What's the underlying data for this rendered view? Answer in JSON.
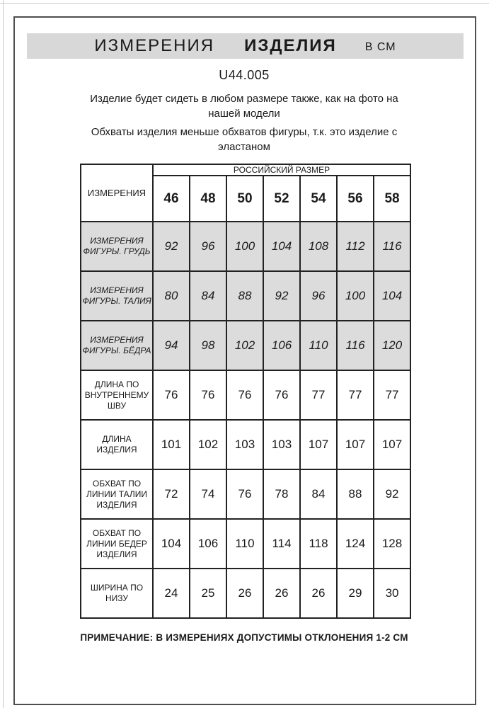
{
  "page": {
    "title": {
      "word1": "ИЗМЕРЕНИЯ",
      "word2": "ИЗДЕЛИЯ",
      "unit": "В СМ"
    },
    "model": "U44.005",
    "paragraph1": "Изделие будет сидеть в любом размере также, как на фото на нашей модели",
    "paragraph2": "Обхваты изделия меньше обхватов фигуры, т.к. это изделие с эластаном",
    "note": "ПРИМЕЧАНИЕ: В ИЗМЕРЕНИЯХ ДОПУСТИМЫ ОТКЛОНЕНИЯ 1-2 СМ"
  },
  "table": {
    "corner_label": "ИЗМЕРЕНИЯ",
    "size_group_label": "РОССИЙСКИЙ РАЗМЕР",
    "sizes": [
      "46",
      "48",
      "50",
      "52",
      "54",
      "56",
      "58"
    ],
    "rows": [
      {
        "label": "ИЗМЕРЕНИЯ ФИГУРЫ. ГРУДЬ",
        "shaded": true,
        "values": [
          "92",
          "96",
          "100",
          "104",
          "108",
          "112",
          "116"
        ]
      },
      {
        "label": "ИЗМЕРЕНИЯ ФИГУРЫ. ТАЛИЯ",
        "shaded": true,
        "values": [
          "80",
          "84",
          "88",
          "92",
          "96",
          "100",
          "104"
        ]
      },
      {
        "label": "ИЗМЕРЕНИЯ ФИГУРЫ. БЁДРА",
        "shaded": true,
        "values": [
          "94",
          "98",
          "102",
          "106",
          "110",
          "116",
          "120"
        ]
      },
      {
        "label": "ДЛИНА ПО ВНУТРЕННЕМУ ШВУ",
        "shaded": false,
        "values": [
          "76",
          "76",
          "76",
          "76",
          "77",
          "77",
          "77"
        ]
      },
      {
        "label": "ДЛИНА ИЗДЕЛИЯ",
        "shaded": false,
        "values": [
          "101",
          "102",
          "103",
          "103",
          "107",
          "107",
          "107"
        ]
      },
      {
        "label": "ОБХВАТ ПО ЛИНИИ ТАЛИИ ИЗДЕЛИЯ",
        "shaded": false,
        "values": [
          "72",
          "74",
          "76",
          "78",
          "84",
          "88",
          "92"
        ]
      },
      {
        "label": "ОБХВАТ ПО ЛИНИИ БЕДЕР ИЗДЕЛИЯ",
        "shaded": false,
        "values": [
          "104",
          "106",
          "110",
          "114",
          "118",
          "124",
          "128"
        ]
      },
      {
        "label": "ШИРИНА ПО НИЗУ",
        "shaded": false,
        "values": [
          "24",
          "25",
          "26",
          "26",
          "26",
          "29",
          "30"
        ]
      }
    ]
  },
  "colors": {
    "band_bg": "#d8d8d8",
    "shaded_row_bg": "#dcdcdc",
    "table_border": "#222222",
    "page_border": "#4f4f4f"
  }
}
